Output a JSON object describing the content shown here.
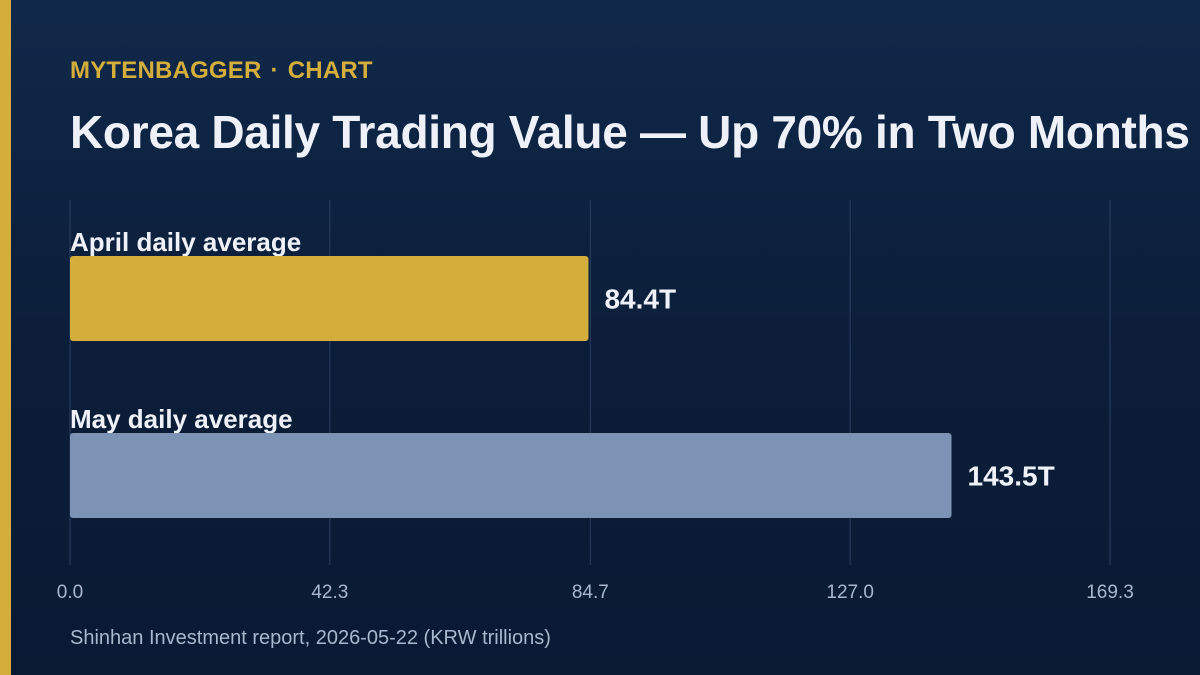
{
  "header": {
    "brand": "MYTENBAGGER",
    "separator": "·",
    "section": "CHART",
    "title": "Korea Daily Trading Value — Up 70% in Two Months"
  },
  "footer": {
    "source": "Shinhan Investment report, 2026-05-22 (KRW trillions)"
  },
  "colors": {
    "accent": "#d4ae3a",
    "april_bar": "#d4ae3a",
    "may_bar": "#7d93b5",
    "grid": "#2a4062",
    "title": "#eef2f8",
    "tick": "#a9b7cc"
  },
  "chart_data": {
    "type": "bar",
    "orientation": "horizontal",
    "categories": [
      "April daily average",
      "May daily average"
    ],
    "values": [
      84.4,
      143.5
    ],
    "value_labels": [
      "84.4T",
      "143.5T"
    ],
    "x_ticks": [
      "0.0",
      "42.3",
      "84.7",
      "127.0",
      "169.3"
    ],
    "xlim": [
      0,
      169.3
    ],
    "grid": true,
    "unit": "KRW trillions"
  }
}
